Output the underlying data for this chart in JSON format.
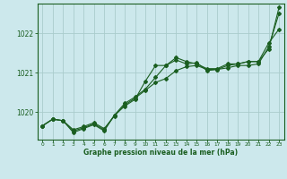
{
  "xlabel": "Graphe pression niveau de la mer (hPa)",
  "bg_color": "#cce8ec",
  "grid_color": "#aacccc",
  "line_color": "#1a5e20",
  "xlim": [
    -0.5,
    23.5
  ],
  "ylim": [
    1019.3,
    1022.75
  ],
  "yticks": [
    1020,
    1021,
    1022
  ],
  "xticks": [
    0,
    1,
    2,
    3,
    4,
    5,
    6,
    7,
    8,
    9,
    10,
    11,
    12,
    13,
    14,
    15,
    16,
    17,
    18,
    19,
    20,
    21,
    22,
    23
  ],
  "series1_x": [
    0,
    1,
    2,
    3,
    4,
    5,
    6,
    7,
    8,
    9,
    10,
    11,
    12,
    13,
    14,
    15,
    16,
    17,
    18,
    19,
    20,
    21,
    22,
    23
  ],
  "series1_y": [
    1019.65,
    1019.82,
    1019.78,
    1019.55,
    1019.63,
    1019.73,
    1019.58,
    1019.9,
    1020.18,
    1020.35,
    1020.55,
    1020.75,
    1020.85,
    1021.05,
    1021.15,
    1021.18,
    1021.08,
    1021.08,
    1021.12,
    1021.18,
    1021.18,
    1021.22,
    1021.65,
    1022.5
  ],
  "series2_x": [
    0,
    1,
    2,
    3,
    4,
    5,
    6,
    7,
    8,
    9,
    10,
    11,
    12,
    13,
    14,
    15,
    16,
    17,
    18,
    19,
    20,
    21,
    22,
    23
  ],
  "series2_y": [
    1019.65,
    1019.82,
    1019.78,
    1019.52,
    1019.6,
    1019.7,
    1019.55,
    1019.92,
    1020.22,
    1020.38,
    1020.58,
    1020.88,
    1021.18,
    1021.32,
    1021.22,
    1021.25,
    1021.05,
    1021.08,
    1021.18,
    1021.22,
    1021.28,
    1021.28,
    1021.75,
    1022.1
  ],
  "series3_x": [
    0,
    1,
    2,
    3,
    4,
    5,
    6,
    7,
    8,
    9,
    10,
    11,
    12,
    13,
    14,
    15,
    16,
    17,
    18,
    19,
    20,
    21,
    22,
    23
  ],
  "series3_y": [
    1019.65,
    1019.82,
    1019.78,
    1019.48,
    1019.58,
    1019.68,
    1019.52,
    1019.92,
    1020.15,
    1020.32,
    1020.78,
    1021.18,
    1021.18,
    1021.38,
    1021.28,
    1021.22,
    1021.1,
    1021.1,
    1021.22,
    1021.22,
    1021.28,
    1021.28,
    1021.6,
    1022.65
  ]
}
